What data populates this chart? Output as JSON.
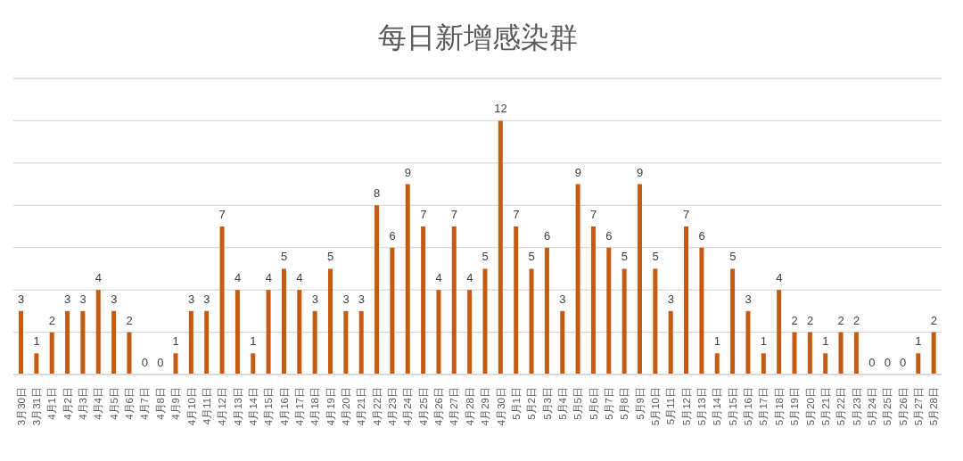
{
  "chart_data": {
    "type": "bar",
    "title": "每日新增感染群",
    "categories": [
      "3月30日",
      "3月31日",
      "4月1日",
      "4月2日",
      "4月3日",
      "4月4日",
      "4月5日",
      "4月6日",
      "4月7日",
      "4月8日",
      "4月9日",
      "4月10日",
      "4月11日",
      "4月12日",
      "4月13日",
      "4月14日",
      "4月15日",
      "4月16日",
      "4月17日",
      "4月18日",
      "4月19日",
      "4月20日",
      "4月21日",
      "4月22日",
      "4月23日",
      "4月24日",
      "4月25日",
      "4月26日",
      "4月27日",
      "4月28日",
      "4月29日",
      "4月30日",
      "5月1日",
      "5月2日",
      "5月3日",
      "5月4日",
      "5月5日",
      "5月6日",
      "5月7日",
      "5月8日",
      "5月9日",
      "5月10日",
      "5月11日",
      "5月12日",
      "5月13日",
      "5月14日",
      "5月15日",
      "5月16日",
      "5月17日",
      "5月18日",
      "5月19日",
      "5月20日",
      "5月21日",
      "5月22日",
      "5月23日",
      "5月24日",
      "5月25日",
      "5月26日",
      "5月27日",
      "5月28日"
    ],
    "values": [
      3,
      1,
      2,
      3,
      3,
      4,
      3,
      2,
      0,
      0,
      1,
      3,
      3,
      7,
      4,
      1,
      4,
      5,
      4,
      3,
      5,
      3,
      3,
      8,
      6,
      9,
      7,
      4,
      7,
      4,
      5,
      12,
      7,
      5,
      6,
      3,
      9,
      7,
      6,
      5,
      9,
      5,
      3,
      7,
      6,
      1,
      5,
      3,
      1,
      4,
      2,
      2,
      1,
      2,
      2,
      0,
      0,
      0,
      1,
      2
    ],
    "color": "#c55a11",
    "ylim": [
      0,
      14
    ],
    "yticks": [
      {
        "value": 0,
        "label": null
      },
      {
        "value": 2,
        "label": null
      },
      {
        "value": 4,
        "label": null
      },
      {
        "value": 6,
        "label": null
      },
      {
        "value": 8,
        "label": null
      },
      {
        "value": 10,
        "label": null
      },
      {
        "value": 12,
        "label": null
      },
      {
        "value": 14,
        "label": null
      }
    ],
    "grid": "y",
    "tick_labels": "x",
    "data_labels": true
  }
}
